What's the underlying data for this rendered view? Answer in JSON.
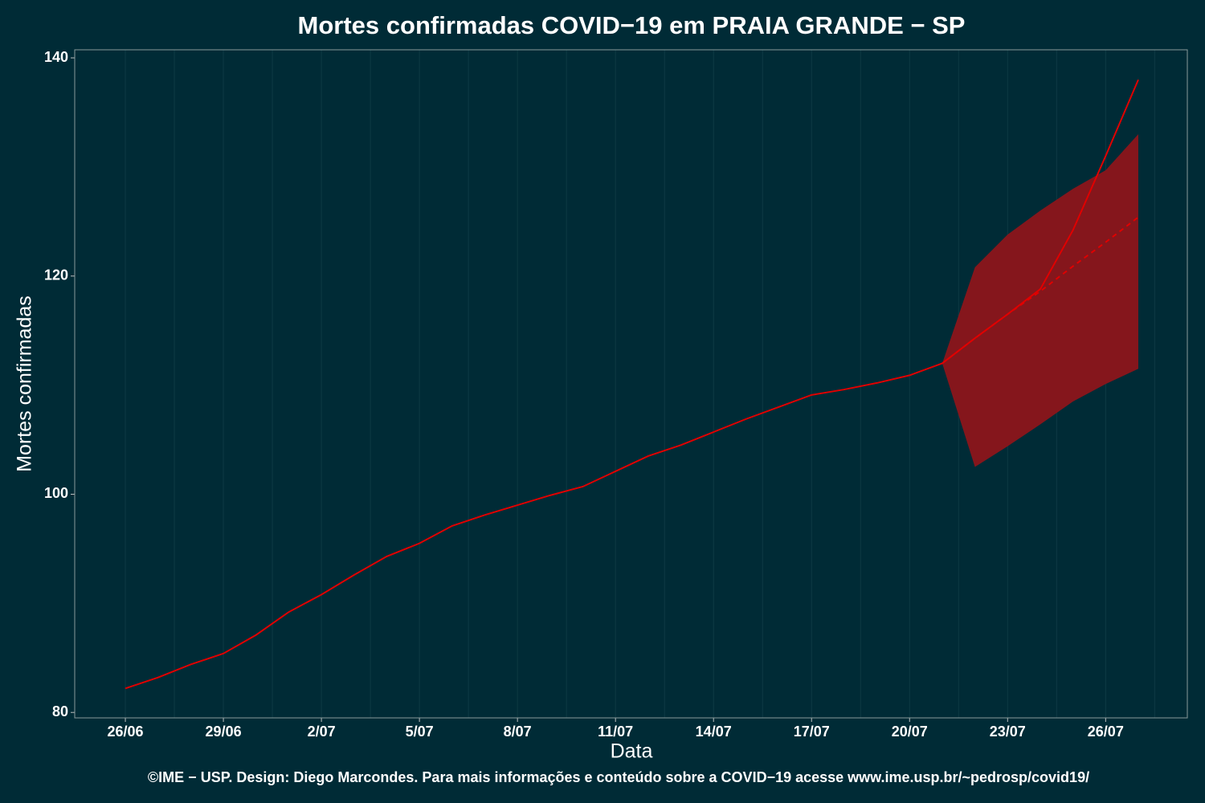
{
  "chart_data": {
    "type": "line",
    "title": "Mortes confirmadas COVID−19 em PRAIA GRANDE − SP",
    "xlabel": "Data",
    "ylabel": "Mortes confirmadas",
    "caption": "©IME − USP. Design: Diego Marcondes. Para mais informações e conteúdo sobre a COVID−19 acesse www.ime.usp.br/~pedrosp/covid19/",
    "categories": [
      "26/06",
      null,
      null,
      "29/06",
      null,
      null,
      "2/07",
      null,
      null,
      "5/07",
      null,
      null,
      "8/07",
      null,
      null,
      "11/07",
      null,
      null,
      "14/07",
      null,
      null,
      "17/07",
      null,
      null,
      "20/07",
      null,
      null,
      "23/07",
      null,
      null,
      "26/07",
      null
    ],
    "series": [
      {
        "color": "#e00000",
        "dashed": false,
        "values": [
          82.2,
          83.2,
          84.4,
          85.4,
          87.1,
          89.2,
          90.8,
          92.6,
          94.3,
          95.5,
          97.1,
          98.1,
          99.0,
          99.9,
          100.7,
          102.1,
          103.5,
          104.5,
          105.7,
          106.9,
          108.0,
          109.1,
          109.6,
          110.2,
          110.9,
          112.0,
          114.3,
          116.5,
          118.8,
          124.2,
          131.0,
          138.0
        ]
      },
      {
        "color": "#e00000",
        "dashed": true,
        "values": [
          null,
          null,
          null,
          null,
          null,
          null,
          null,
          null,
          null,
          null,
          null,
          null,
          null,
          null,
          null,
          null,
          null,
          null,
          null,
          null,
          null,
          null,
          null,
          null,
          null,
          112.0,
          114.3,
          116.5,
          118.6,
          120.9,
          123.1,
          125.4
        ]
      }
    ],
    "band": {
      "color": "#85161c",
      "lower": [
        null,
        null,
        null,
        null,
        null,
        null,
        null,
        null,
        null,
        null,
        null,
        null,
        null,
        null,
        null,
        null,
        null,
        null,
        null,
        null,
        null,
        null,
        null,
        null,
        null,
        112.0,
        102.5,
        104.4,
        106.4,
        108.5,
        110.1,
        111.5
      ],
      "upper": [
        null,
        null,
        null,
        null,
        null,
        null,
        null,
        null,
        null,
        null,
        null,
        null,
        null,
        null,
        null,
        null,
        null,
        null,
        null,
        null,
        null,
        null,
        null,
        null,
        null,
        112.0,
        120.8,
        123.8,
        126.0,
        128.0,
        129.7,
        133.0
      ]
    },
    "ylim": [
      79.5,
      140.74
    ],
    "yticks": [
      80,
      100,
      120,
      140
    ],
    "grid": true
  }
}
